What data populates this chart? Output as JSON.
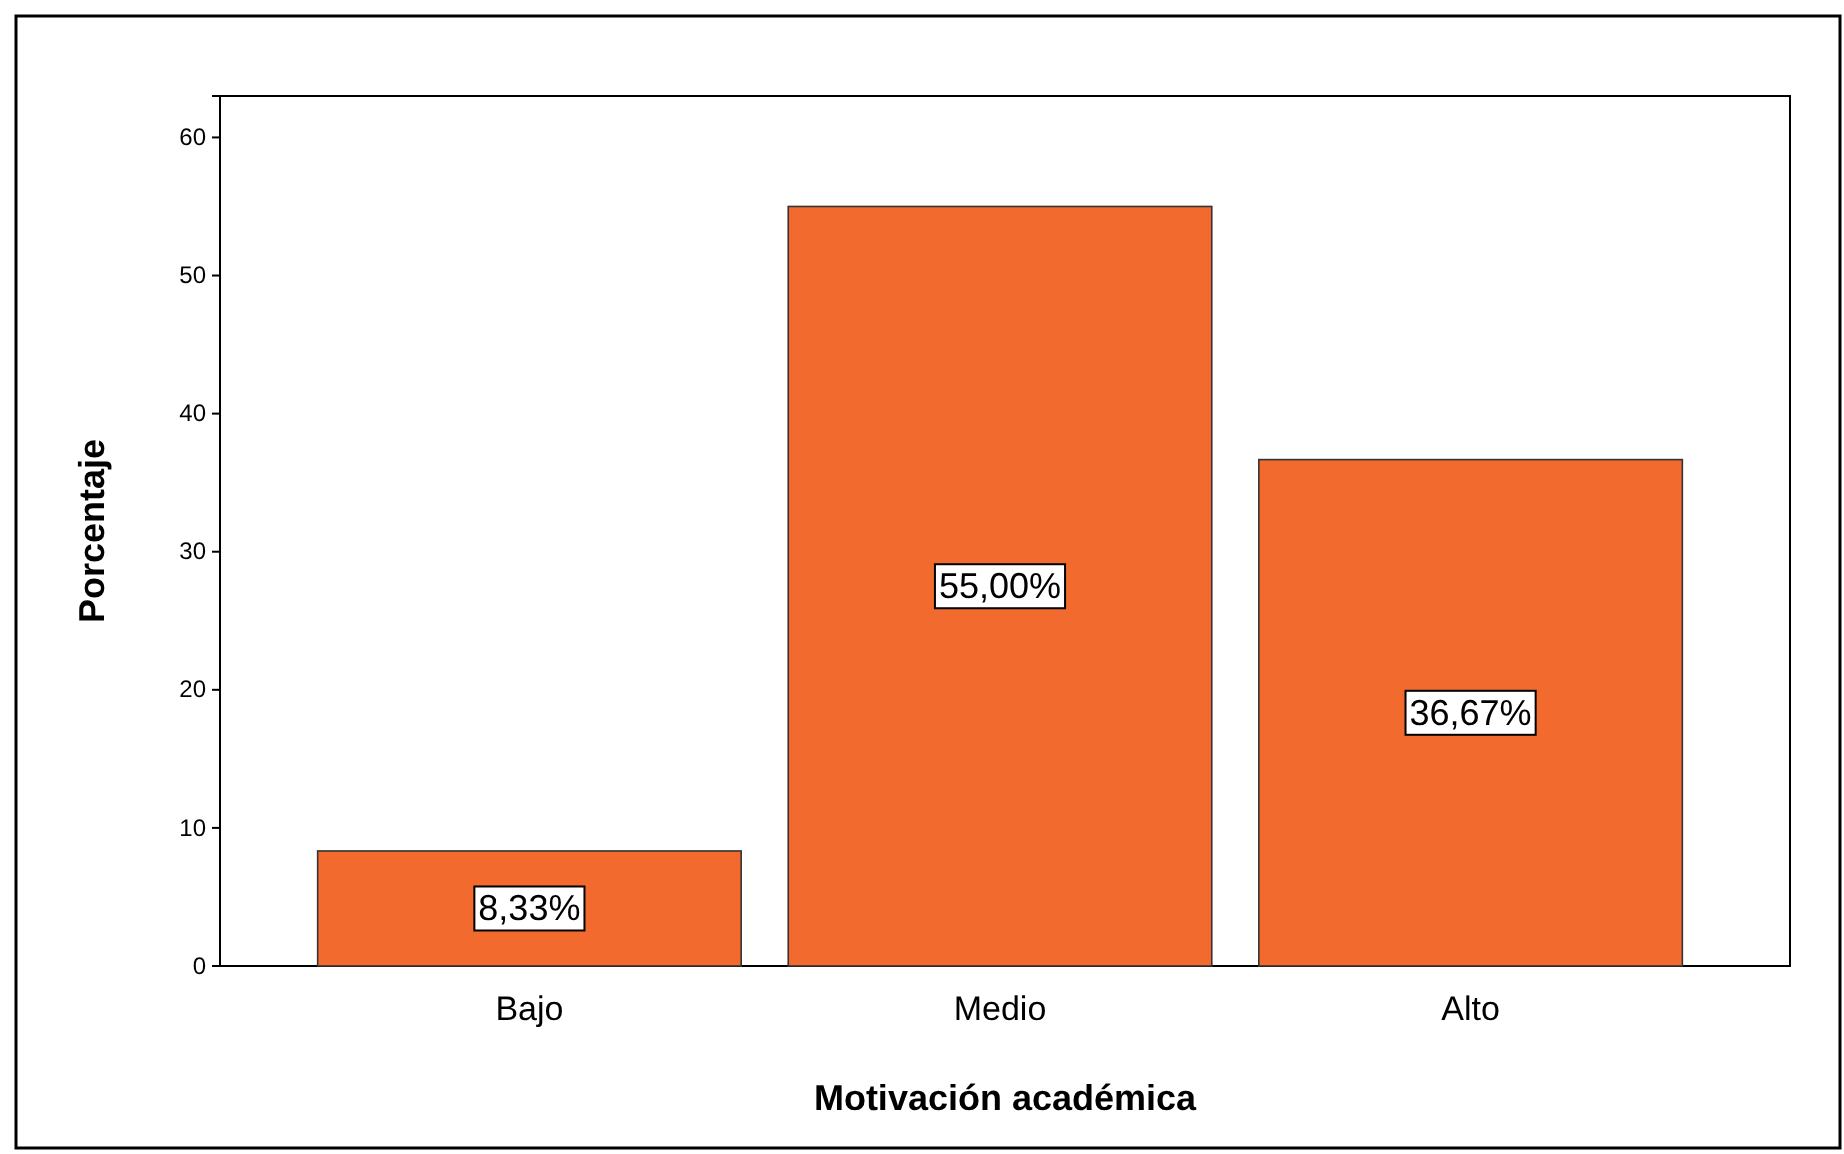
{
  "chart_data": {
    "type": "bar",
    "xlabel": "Motivación académica",
    "ylabel": "Porcentaje",
    "categories": [
      "Bajo",
      "Medio",
      "Alto"
    ],
    "values": [
      8.33,
      55.0,
      36.67
    ],
    "value_labels": [
      "8,33%",
      "55,00%",
      "36,67%"
    ],
    "color": "#f26a2e",
    "ylim": [
      0,
      63
    ],
    "yticks": [
      0,
      10,
      20,
      30,
      40,
      50,
      60
    ]
  }
}
